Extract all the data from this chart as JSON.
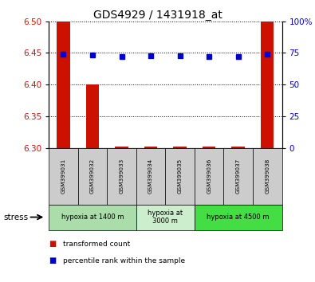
{
  "title": "GDS4929 / 1431918_at",
  "samples": [
    "GSM399031",
    "GSM399032",
    "GSM399033",
    "GSM399034",
    "GSM399035",
    "GSM399036",
    "GSM399037",
    "GSM399038"
  ],
  "red_values": [
    6.5,
    6.4,
    6.302,
    6.302,
    6.302,
    6.302,
    6.302,
    6.5
  ],
  "blue_values": [
    74,
    73.5,
    72,
    73,
    73,
    72,
    72,
    74
  ],
  "ylim_left": [
    6.3,
    6.5
  ],
  "ylim_right": [
    0,
    100
  ],
  "yticks_left": [
    6.3,
    6.35,
    6.4,
    6.45,
    6.5
  ],
  "yticks_right": [
    0,
    25,
    50,
    75,
    100
  ],
  "ytick_right_labels": [
    "0",
    "25",
    "50",
    "75",
    "100%"
  ],
  "groups": [
    {
      "label": "hypoxia at 1400 m",
      "start": 0,
      "end": 2,
      "color": "#aaddaa"
    },
    {
      "label": "hypoxia at\n3000 m",
      "start": 3,
      "end": 4,
      "color": "#cceecc"
    },
    {
      "label": "hypoxia at 4500 m",
      "start": 5,
      "end": 7,
      "color": "#44dd44"
    }
  ],
  "bar_color": "#cc1100",
  "blue_color": "#0000cc",
  "sample_bg": "#cccccc",
  "legend_red": "transformed count",
  "legend_blue": "percentile rank within the sample",
  "stress_label": "stress"
}
